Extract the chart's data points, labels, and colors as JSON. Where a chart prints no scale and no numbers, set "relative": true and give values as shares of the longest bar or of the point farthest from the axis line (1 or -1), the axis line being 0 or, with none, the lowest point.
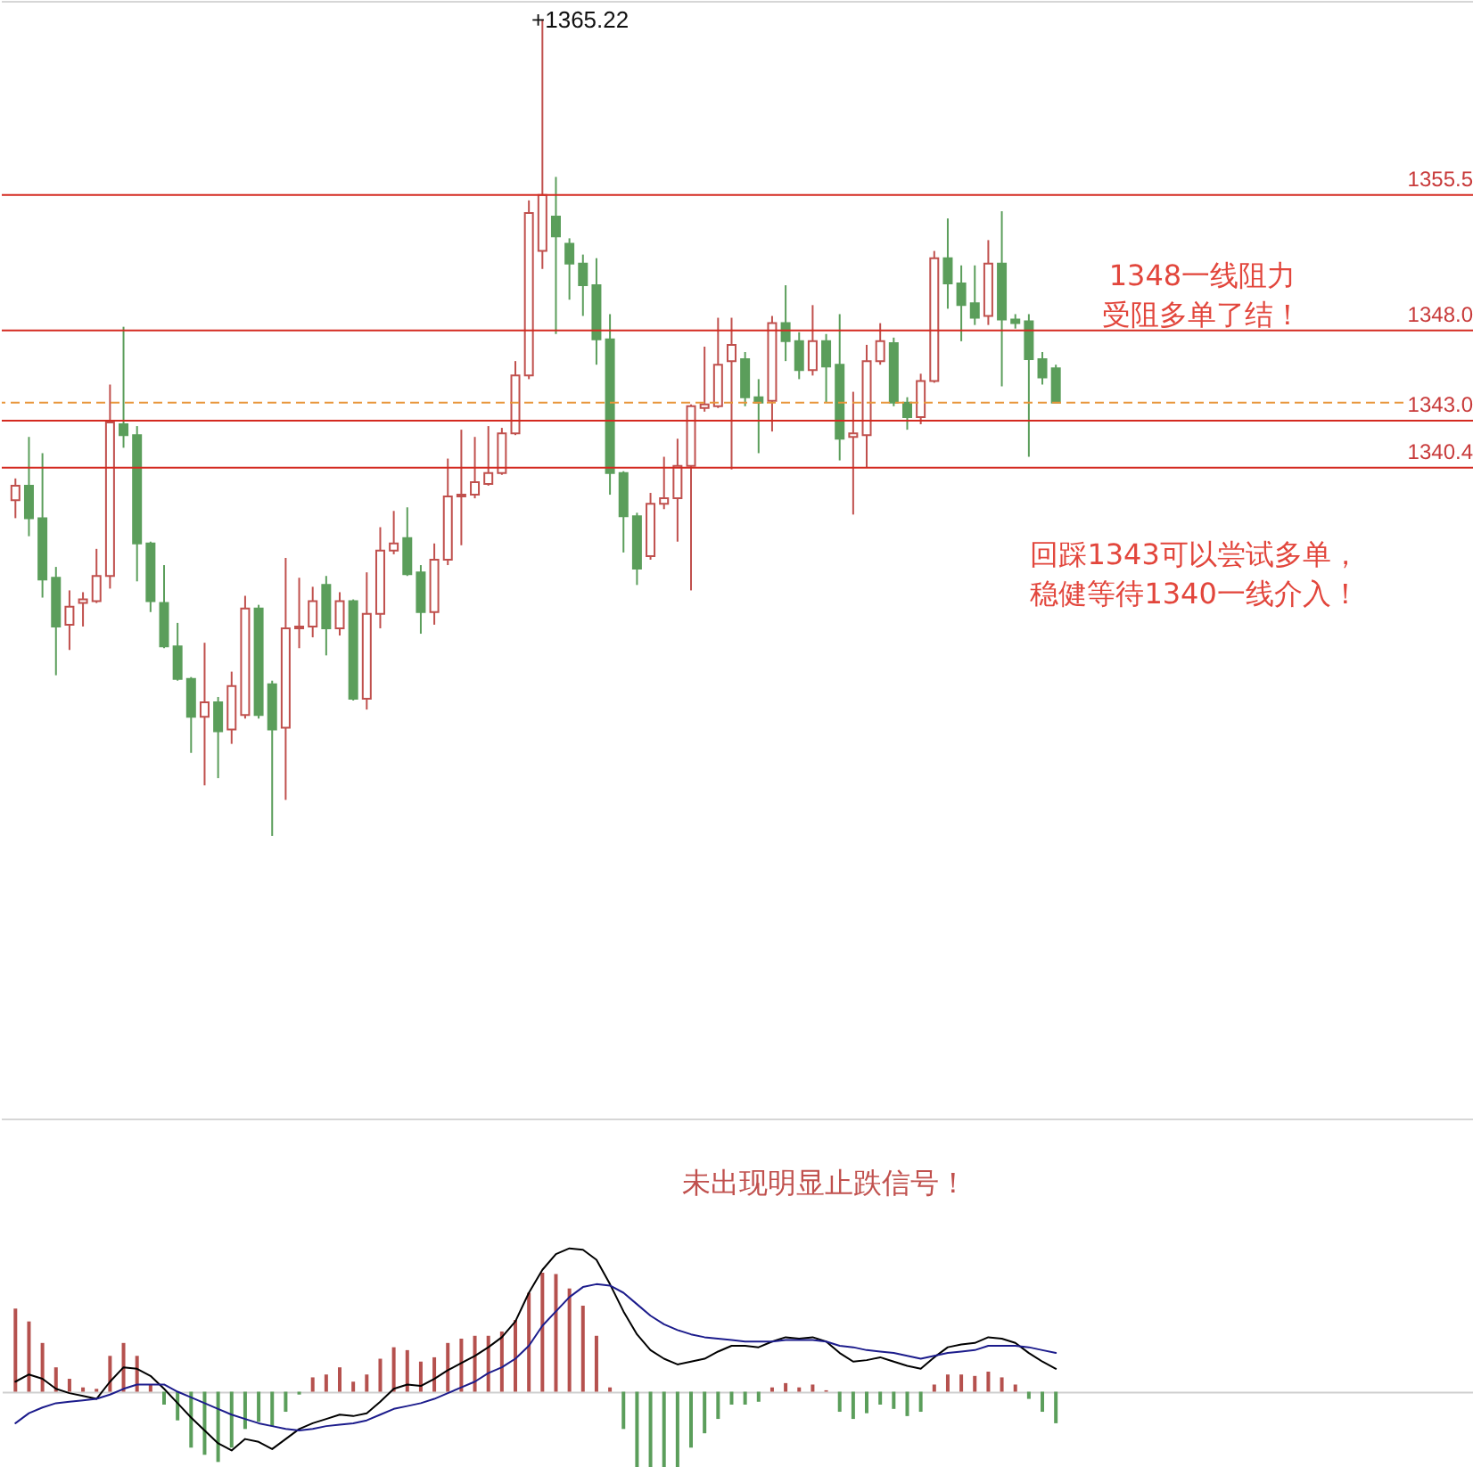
{
  "chart_data": [
    {
      "type": "candlestick",
      "categories": [
        null,
        null,
        null,
        null,
        null,
        null,
        null,
        null,
        null,
        null,
        null,
        null,
        null,
        null,
        null,
        null,
        null,
        null,
        null,
        null,
        null,
        null,
        null,
        null,
        null,
        null,
        null,
        null,
        null,
        null,
        null,
        null,
        null,
        null,
        null,
        null,
        null,
        null,
        null,
        null,
        null,
        null,
        null,
        null,
        null,
        null,
        null,
        null,
        null,
        null,
        null,
        null,
        null,
        null,
        null,
        null,
        null,
        null,
        null,
        null,
        null,
        null,
        null,
        null,
        null,
        null,
        null,
        null,
        null,
        null,
        null,
        null,
        null,
        null,
        null,
        null,
        null,
        null
      ],
      "ohlc": [
        [
          1338.6,
          1339.8,
          1337.6,
          1339.4
        ],
        [
          1339.4,
          1342.1,
          1336.6,
          1337.6
        ],
        [
          1337.6,
          1341.2,
          1333.2,
          1334.2
        ],
        [
          1334.3,
          1334.9,
          1328.9,
          1331.6
        ],
        [
          1331.7,
          1333.6,
          1330.3,
          1332.7
        ],
        [
          1332.9,
          1333.5,
          1331.6,
          1333.1
        ],
        [
          1333.0,
          1335.9,
          1332.9,
          1334.4
        ],
        [
          1334.4,
          1345.0,
          1333.7,
          1342.9
        ],
        [
          1342.8,
          1348.2,
          1341.5,
          1342.2
        ],
        [
          1342.2,
          1342.7,
          1334.1,
          1336.2
        ],
        [
          1336.2,
          1336.3,
          1332.4,
          1333.0
        ],
        [
          1332.9,
          1335.0,
          1330.4,
          1330.5
        ],
        [
          1330.5,
          1331.8,
          1328.6,
          1328.7
        ],
        [
          1328.7,
          1328.8,
          1324.6,
          1326.6
        ],
        [
          1326.6,
          1330.7,
          1322.8,
          1327.4
        ],
        [
          1327.4,
          1327.7,
          1323.2,
          1325.8
        ],
        [
          1325.9,
          1329.1,
          1325.1,
          1328.3
        ],
        [
          1326.7,
          1333.3,
          1326.5,
          1332.6
        ],
        [
          1332.6,
          1332.8,
          1326.5,
          1326.7
        ],
        [
          1328.4,
          1328.6,
          1320.0,
          1325.9
        ],
        [
          1326.0,
          1335.4,
          1322.0,
          1331.5
        ],
        [
          1331.5,
          1334.3,
          1330.4,
          1331.6
        ],
        [
          1331.6,
          1333.8,
          1331.0,
          1333.0
        ],
        [
          1333.9,
          1334.4,
          1330.0,
          1331.5
        ],
        [
          1331.5,
          1333.5,
          1331.1,
          1333.0
        ],
        [
          1333.0,
          1333.1,
          1327.5,
          1327.6
        ],
        [
          1327.6,
          1334.6,
          1327.0,
          1332.3
        ],
        [
          1332.3,
          1337.1,
          1331.5,
          1335.8
        ],
        [
          1335.8,
          1338.0,
          1335.6,
          1336.2
        ],
        [
          1336.5,
          1338.2,
          1334.4,
          1334.5
        ],
        [
          1334.6,
          1335.0,
          1331.2,
          1332.4
        ],
        [
          1332.4,
          1336.2,
          1331.7,
          1335.3
        ],
        [
          1335.3,
          1340.9,
          1335.0,
          1338.8
        ],
        [
          1338.8,
          1342.5,
          1336.1,
          1338.9
        ],
        [
          1338.9,
          1342.1,
          1338.7,
          1339.6
        ],
        [
          1339.5,
          1342.7,
          1339.4,
          1340.1
        ],
        [
          1340.1,
          1342.6,
          1340.0,
          1342.3
        ],
        [
          1342.3,
          1346.3,
          1342.2,
          1345.5
        ],
        [
          1345.5,
          1355.2,
          1345.3,
          1354.5
        ],
        [
          1352.4,
          1365.22,
          1351.4,
          1355.5
        ],
        [
          1354.3,
          1356.5,
          1347.8,
          1353.2
        ],
        [
          1352.8,
          1353.1,
          1349.7,
          1351.7
        ],
        [
          1351.7,
          1352.2,
          1348.8,
          1350.5
        ],
        [
          1350.5,
          1352.0,
          1346.1,
          1347.5
        ],
        [
          1347.5,
          1348.9,
          1338.9,
          1340.1
        ],
        [
          1340.1,
          1340.2,
          1335.7,
          1337.7
        ],
        [
          1337.7,
          1337.9,
          1333.9,
          1334.8
        ],
        [
          1335.5,
          1339.0,
          1335.3,
          1338.4
        ],
        [
          1338.4,
          1341.0,
          1338.1,
          1338.7
        ],
        [
          1338.7,
          1342.0,
          1336.3,
          1340.5
        ],
        [
          1340.5,
          1343.9,
          1333.6,
          1343.8
        ],
        [
          1343.7,
          1347.1,
          1343.5,
          1343.9
        ],
        [
          1343.8,
          1348.7,
          1343.7,
          1346.1
        ],
        [
          1346.3,
          1348.7,
          1340.3,
          1347.2
        ],
        [
          1346.4,
          1346.8,
          1343.8,
          1344.3
        ],
        [
          1344.3,
          1345.3,
          1341.2,
          1344.0
        ],
        [
          1344.1,
          1348.8,
          1342.4,
          1348.4
        ],
        [
          1348.4,
          1350.5,
          1346.3,
          1347.4
        ],
        [
          1347.4,
          1347.9,
          1345.3,
          1345.8
        ],
        [
          1345.8,
          1349.4,
          1345.5,
          1347.4
        ],
        [
          1347.4,
          1347.8,
          1344.0,
          1346.0
        ],
        [
          1346.1,
          1348.9,
          1340.8,
          1342.0
        ],
        [
          1342.1,
          1344.6,
          1337.8,
          1342.3
        ],
        [
          1342.2,
          1347.2,
          1340.4,
          1346.3
        ],
        [
          1346.3,
          1348.4,
          1346.1,
          1347.4
        ],
        [
          1347.3,
          1347.6,
          1343.8,
          1344.0
        ],
        [
          1344.0,
          1344.3,
          1342.5,
          1343.2
        ],
        [
          1343.2,
          1345.6,
          1342.8,
          1345.2
        ],
        [
          1345.2,
          1352.4,
          1345.1,
          1352.0
        ],
        [
          1352.0,
          1354.2,
          1349.2,
          1350.6
        ],
        [
          1350.6,
          1351.6,
          1347.4,
          1349.4
        ],
        [
          1349.5,
          1351.6,
          1348.3,
          1348.7
        ],
        [
          1348.8,
          1353.0,
          1348.3,
          1351.7
        ],
        [
          1351.7,
          1354.6,
          1344.9,
          1348.6
        ],
        [
          1348.6,
          1348.9,
          1348.1,
          1348.4
        ],
        [
          1348.5,
          1348.9,
          1341.0,
          1346.4
        ],
        [
          1346.4,
          1346.8,
          1345.0,
          1345.4
        ],
        [
          1345.9,
          1346.1,
          1344.0,
          1344.0
        ]
      ],
      "colors": [
        "#c0504d",
        "#5b9e5b",
        "#5b9e5b",
        "#5b9e5b",
        "#c0504d",
        "#c0504d",
        "#c0504d",
        "#c0504d",
        "#5b9e5b",
        "#5b9e5b",
        "#5b9e5b",
        "#5b9e5b",
        "#5b9e5b",
        "#5b9e5b",
        "#c0504d",
        "#5b9e5b",
        "#c0504d",
        "#c0504d",
        "#5b9e5b",
        "#5b9e5b",
        "#c0504d",
        "#c0504d",
        "#c0504d",
        "#5b9e5b",
        "#c0504d",
        "#5b9e5b",
        "#c0504d",
        "#c0504d",
        "#c0504d",
        "#5b9e5b",
        "#5b9e5b",
        "#c0504d",
        "#c0504d",
        "#c0504d",
        "#c0504d",
        "#c0504d",
        "#c0504d",
        "#c0504d",
        "#c0504d",
        "#c0504d",
        "#5b9e5b",
        "#5b9e5b",
        "#5b9e5b",
        "#5b9e5b",
        "#5b9e5b",
        "#5b9e5b",
        "#5b9e5b",
        "#c0504d",
        "#c0504d",
        "#c0504d",
        "#c0504d",
        "#c0504d",
        "#c0504d",
        "#c0504d",
        "#5b9e5b",
        "#5b9e5b",
        "#c0504d",
        "#5b9e5b",
        "#5b9e5b",
        "#c0504d",
        "#5b9e5b",
        "#5b9e5b",
        "#c0504d",
        "#c0504d",
        "#c0504d",
        "#5b9e5b",
        "#5b9e5b",
        "#c0504d",
        "#c0504d",
        "#5b9e5b",
        "#5b9e5b",
        "#5b9e5b",
        "#c0504d",
        "#5b9e5b",
        "#5b9e5b",
        "#5b9e5b",
        "#5b9e5b",
        "#5b9e5b"
      ],
      "ylim": [
        1304.3,
        1366.2
      ],
      "tick_labels": false,
      "grid": false,
      "ref_lines": [
        {
          "axis": "y",
          "value": 1355.5,
          "label": "1355.5",
          "color": "#d42a20"
        },
        {
          "axis": "y",
          "value": 1348.0,
          "label": "1348.0",
          "color": "#d42a20"
        },
        {
          "axis": "y",
          "value": 1343.0,
          "label": "1343.0",
          "color": "#d42a20"
        },
        {
          "axis": "y",
          "value": 1340.4,
          "label": "1340.4",
          "color": "#d42a20"
        },
        {
          "axis": "y",
          "value": 1344.0,
          "color": "#e8953a",
          "line_style": "dashed"
        }
      ],
      "annotations": [
        "+1365.22",
        "1348一线阻力受阻多单了结！",
        "回踩1343可以尝试多单，稳健等待1340一线介入！"
      ]
    },
    {
      "type": "line",
      "relative": true,
      "categories": [
        null,
        null,
        null,
        null,
        null,
        null,
        null,
        null,
        null,
        null,
        null,
        null,
        null,
        null,
        null,
        null,
        null,
        null,
        null,
        null,
        null,
        null,
        null,
        null,
        null,
        null,
        null,
        null,
        null,
        null,
        null,
        null,
        null,
        null,
        null,
        null,
        null,
        null,
        null,
        null,
        null,
        null,
        null,
        null,
        null,
        null,
        null,
        null,
        null,
        null,
        null,
        null,
        null,
        null,
        null,
        null,
        null,
        null,
        null,
        null,
        null,
        null,
        null,
        null,
        null,
        null,
        null,
        null,
        null,
        null,
        null,
        null,
        null,
        null,
        null,
        null,
        null,
        null
      ],
      "tick_labels": false,
      "grid": false,
      "series": [
        {
          "type": "bar",
          "values": [
            0.58,
            0.49,
            0.34,
            0.17,
            0.09,
            0.03,
            0.02,
            0.25,
            0.34,
            0.25,
            0.05,
            -0.09,
            -0.2,
            -0.39,
            -0.44,
            -0.49,
            -0.39,
            -0.26,
            -0.21,
            -0.24,
            -0.14,
            -0.02,
            0.1,
            0.12,
            0.17,
            0.07,
            0.12,
            0.23,
            0.31,
            0.29,
            0.21,
            0.24,
            0.34,
            0.37,
            0.39,
            0.39,
            0.42,
            0.5,
            0.69,
            0.83,
            0.82,
            0.72,
            0.6,
            0.39,
            0.03,
            -0.26,
            -0.53,
            -0.55,
            -0.55,
            -0.53,
            -0.39,
            -0.29,
            -0.19,
            -0.09,
            -0.09,
            -0.07,
            0.03,
            0.06,
            0.03,
            0.05,
            0.01,
            -0.14,
            -0.19,
            -0.15,
            -0.09,
            -0.12,
            -0.17,
            -0.14,
            0.05,
            0.12,
            0.12,
            0.11,
            0.14,
            0.1,
            0.05,
            -0.05,
            -0.14,
            -0.22
          ],
          "colors": [
            "#b5514e",
            "#b5514e",
            "#b5514e",
            "#b5514e",
            "#b5514e",
            "#b5514e",
            "#b5514e",
            "#b5514e",
            "#b5514e",
            "#b5514e",
            "#b5514e",
            "#5b9e5b",
            "#5b9e5b",
            "#5b9e5b",
            "#5b9e5b",
            "#5b9e5b",
            "#5b9e5b",
            "#5b9e5b",
            "#5b9e5b",
            "#5b9e5b",
            "#5b9e5b",
            "#5b9e5b",
            "#b5514e",
            "#b5514e",
            "#b5514e",
            "#b5514e",
            "#b5514e",
            "#b5514e",
            "#b5514e",
            "#b5514e",
            "#b5514e",
            "#b5514e",
            "#b5514e",
            "#b5514e",
            "#b5514e",
            "#b5514e",
            "#b5514e",
            "#b5514e",
            "#b5514e",
            "#b5514e",
            "#b5514e",
            "#b5514e",
            "#b5514e",
            "#b5514e",
            "#b5514e",
            "#5b9e5b",
            "#5b9e5b",
            "#5b9e5b",
            "#5b9e5b",
            "#5b9e5b",
            "#5b9e5b",
            "#5b9e5b",
            "#5b9e5b",
            "#5b9e5b",
            "#5b9e5b",
            "#5b9e5b",
            "#b5514e",
            "#b5514e",
            "#b5514e",
            "#b5514e",
            "#b5514e",
            "#5b9e5b",
            "#5b9e5b",
            "#5b9e5b",
            "#5b9e5b",
            "#5b9e5b",
            "#5b9e5b",
            "#5b9e5b",
            "#b5514e",
            "#b5514e",
            "#b5514e",
            "#b5514e",
            "#b5514e",
            "#b5514e",
            "#b5514e",
            "#5b9e5b",
            "#5b9e5b",
            "#5b9e5b"
          ]
        },
        {
          "type": "line",
          "color": "#000000",
          "values": [
            0.07,
            0.12,
            0.09,
            0.02,
            -0.01,
            -0.03,
            -0.05,
            0.07,
            0.17,
            0.16,
            0.11,
            0.02,
            -0.08,
            -0.18,
            -0.27,
            -0.36,
            -0.41,
            -0.33,
            -0.35,
            -0.4,
            -0.33,
            -0.26,
            -0.22,
            -0.19,
            -0.16,
            -0.17,
            -0.15,
            -0.07,
            0.02,
            0.05,
            0.04,
            0.09,
            0.15,
            0.2,
            0.25,
            0.31,
            0.38,
            0.49,
            0.69,
            0.85,
            0.96,
            1.0,
            0.99,
            0.92,
            0.75,
            0.56,
            0.4,
            0.29,
            0.23,
            0.19,
            0.21,
            0.23,
            0.28,
            0.32,
            0.32,
            0.31,
            0.35,
            0.38,
            0.37,
            0.38,
            0.35,
            0.27,
            0.21,
            0.22,
            0.24,
            0.21,
            0.18,
            0.16,
            0.24,
            0.31,
            0.33,
            0.34,
            0.38,
            0.37,
            0.34,
            0.27,
            0.21,
            0.16
          ]
        },
        {
          "type": "line",
          "color": "#1c1c8c",
          "values": [
            -0.22,
            -0.15,
            -0.11,
            -0.08,
            -0.07,
            -0.06,
            -0.05,
            -0.02,
            0.02,
            0.05,
            0.05,
            0.05,
            0.0,
            -0.04,
            -0.08,
            -0.12,
            -0.16,
            -0.19,
            -0.22,
            -0.24,
            -0.26,
            -0.27,
            -0.26,
            -0.24,
            -0.23,
            -0.22,
            -0.2,
            -0.16,
            -0.12,
            -0.1,
            -0.08,
            -0.05,
            -0.01,
            0.03,
            0.07,
            0.13,
            0.17,
            0.23,
            0.32,
            0.46,
            0.56,
            0.66,
            0.73,
            0.75,
            0.74,
            0.69,
            0.61,
            0.53,
            0.47,
            0.43,
            0.4,
            0.38,
            0.37,
            0.36,
            0.35,
            0.35,
            0.35,
            0.36,
            0.36,
            0.36,
            0.35,
            0.32,
            0.31,
            0.29,
            0.28,
            0.27,
            0.25,
            0.23,
            0.25,
            0.27,
            0.28,
            0.29,
            0.32,
            0.32,
            0.32,
            0.31,
            0.29,
            0.27
          ]
        }
      ],
      "annotations": [
        "未出现明显止跌信号！"
      ]
    }
  ]
}
